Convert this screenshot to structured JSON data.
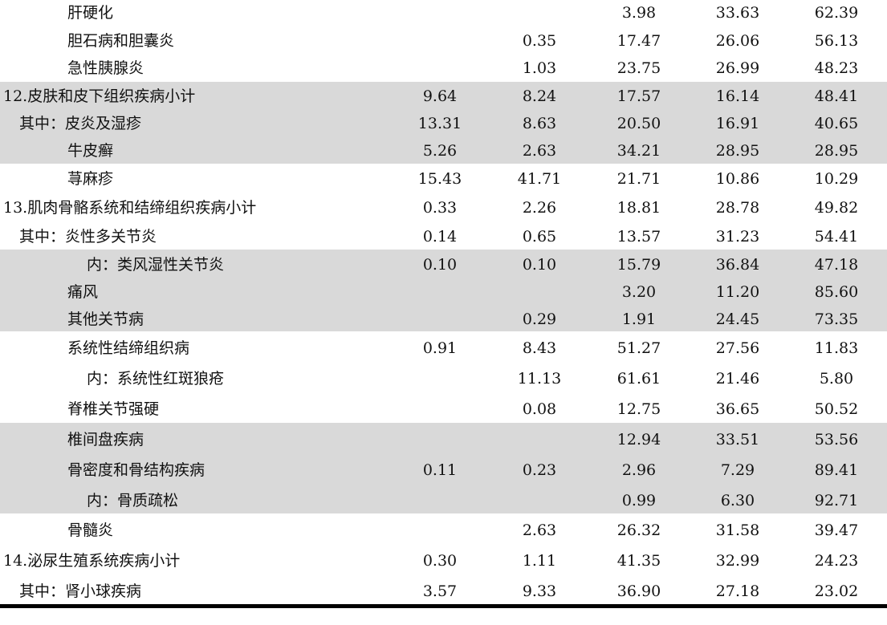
{
  "rows": [
    {
      "indent": 84,
      "name": "肝硬化",
      "values": [
        "",
        "",
        "3.98",
        "33.63",
        "62.39"
      ]
    },
    {
      "indent": 84,
      "name": "胆石病和胆囊炎",
      "values": [
        "",
        "0.35",
        "17.47",
        "26.06",
        "56.13"
      ]
    },
    {
      "indent": 84,
      "name": "急性胰腺炎",
      "values": [
        "",
        "1.03",
        "23.75",
        "26.99",
        "48.23"
      ]
    },
    {
      "indent": 4,
      "name": "12.皮肤和皮下组织疾病小计",
      "values": [
        "9.64",
        "8.24",
        "17.57",
        "16.14",
        "48.41"
      ]
    },
    {
      "indent": 24,
      "name": "其中：皮炎及湿疹",
      "values": [
        "13.31",
        "8.63",
        "20.50",
        "16.91",
        "40.65"
      ]
    },
    {
      "indent": 84,
      "name": "牛皮癣",
      "values": [
        "5.26",
        "2.63",
        "34.21",
        "28.95",
        "28.95"
      ]
    },
    {
      "indent": 84,
      "name": "荨麻疹",
      "values": [
        "15.43",
        "41.71",
        "21.71",
        "10.86",
        "10.29"
      ]
    },
    {
      "indent": 4,
      "name": "13.肌肉骨骼系统和结缔组织疾病小计",
      "values": [
        "0.33",
        "2.26",
        "18.81",
        "28.78",
        "49.82"
      ]
    },
    {
      "indent": 24,
      "name": "其中：炎性多关节炎",
      "values": [
        "0.14",
        "0.65",
        "13.57",
        "31.23",
        "54.41"
      ]
    },
    {
      "indent": 108,
      "name": "内：类风湿性关节炎",
      "values": [
        "0.10",
        "0.10",
        "15.79",
        "36.84",
        "47.18"
      ]
    },
    {
      "indent": 84,
      "name": "痛风",
      "values": [
        "",
        "",
        "3.20",
        "11.20",
        "85.60"
      ]
    },
    {
      "indent": 84,
      "name": "其他关节病",
      "values": [
        "",
        "0.29",
        "1.91",
        "24.45",
        "73.35"
      ]
    },
    {
      "indent": 84,
      "name": "系统性结缔组织病",
      "values": [
        "0.91",
        "8.43",
        "51.27",
        "27.56",
        "11.83"
      ]
    },
    {
      "indent": 108,
      "name": "内：系统性红斑狼疮",
      "values": [
        "",
        "11.13",
        "61.61",
        "21.46",
        "5.80"
      ]
    },
    {
      "indent": 84,
      "name": "脊椎关节强硬",
      "values": [
        "",
        "0.08",
        "12.75",
        "36.65",
        "50.52"
      ]
    },
    {
      "indent": 84,
      "name": "椎间盘疾病",
      "values": [
        "",
        "",
        "12.94",
        "33.51",
        "53.56"
      ]
    },
    {
      "indent": 84,
      "name": "骨密度和骨结构疾病",
      "values": [
        "0.11",
        "0.23",
        "2.96",
        "7.29",
        "89.41"
      ]
    },
    {
      "indent": 108,
      "name": "内：骨质疏松",
      "values": [
        "",
        "",
        "0.99",
        "6.30",
        "92.71"
      ]
    },
    {
      "indent": 84,
      "name": "骨髓炎",
      "values": [
        "",
        "2.63",
        "26.32",
        "31.58",
        "39.47"
      ]
    },
    {
      "indent": 4,
      "name": "14.泌尿生殖系统疾病小计",
      "values": [
        "0.30",
        "1.11",
        "41.35",
        "32.99",
        "24.23"
      ]
    },
    {
      "indent": 24,
      "name": "其中：肾小球疾病",
      "values": [
        "3.57",
        "9.33",
        "36.90",
        "27.18",
        "23.02"
      ]
    }
  ],
  "colors": {
    "band": "#d9d9d9",
    "text": "#111111",
    "rule": "#000000"
  }
}
